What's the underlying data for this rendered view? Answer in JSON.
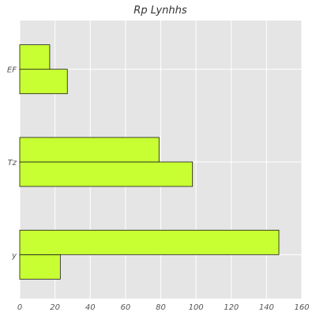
{
  "chart_data": {
    "type": "bar",
    "orientation": "horizontal",
    "title": "Rp  Lynhhs",
    "xlabel": "",
    "ylabel": "",
    "categories": [
      "y",
      "Tz",
      "EF"
    ],
    "series": [
      {
        "values": [
          23,
          98,
          27
        ]
      },
      {
        "values": [
          147,
          79,
          17
        ]
      }
    ],
    "xlim": [
      0,
      160
    ],
    "xticks": [
      "0",
      "20",
      "40",
      "60",
      "80",
      "100",
      "120",
      "140",
      "160"
    ],
    "grid": true,
    "legend": "none",
    "colors": {
      "bar_fill": "#c8ff33",
      "bar_edge": "#1a1a1a",
      "plot_bg": "#e5e5e5",
      "grid": "#ffffff"
    }
  }
}
